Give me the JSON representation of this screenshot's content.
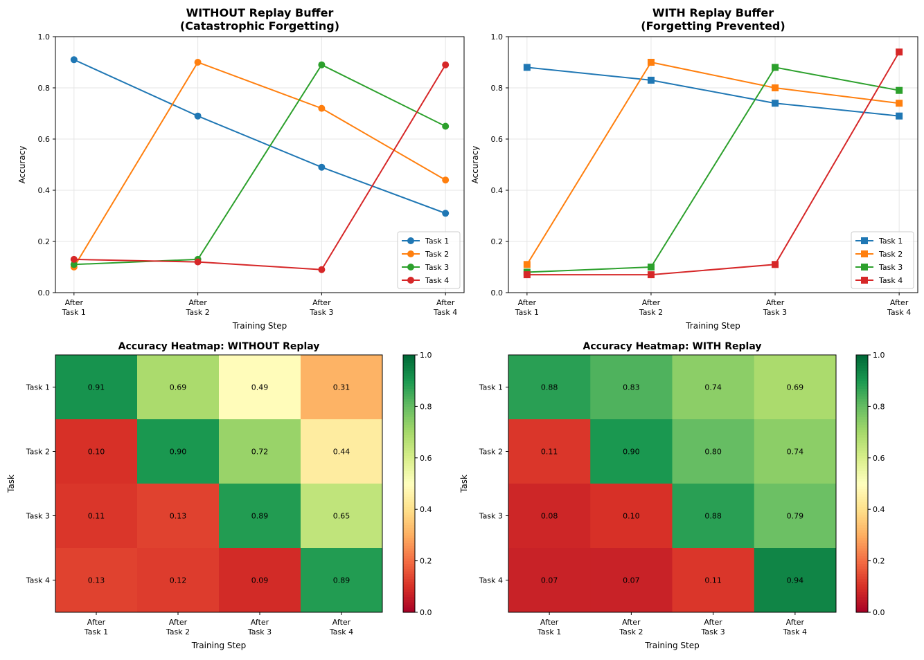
{
  "chart_data": [
    {
      "type": "line",
      "title": "WITHOUT Replay Buffer\n(Catastrophic Forgetting)",
      "xlabel": "Training Step",
      "ylabel": "Accuracy",
      "ylim": [
        0,
        1
      ],
      "yticks": [
        "0.0",
        "0.2",
        "0.4",
        "0.6",
        "0.8",
        "1.0"
      ],
      "categories": [
        "After\nTask 1",
        "After\nTask 2",
        "After\nTask 3",
        "After\nTask 4"
      ],
      "marker": "circle",
      "grid": true,
      "legend": "lower-right",
      "series": [
        {
          "name": "Task 1",
          "values": [
            0.91,
            0.69,
            0.49,
            0.31
          ],
          "color": "#1f77b4"
        },
        {
          "name": "Task 2",
          "values": [
            0.1,
            0.9,
            0.72,
            0.44
          ],
          "color": "#ff7f0e"
        },
        {
          "name": "Task 3",
          "values": [
            0.11,
            0.13,
            0.89,
            0.65
          ],
          "color": "#2ca02c"
        },
        {
          "name": "Task 4",
          "values": [
            0.13,
            0.12,
            0.09,
            0.89
          ],
          "color": "#d62728"
        }
      ]
    },
    {
      "type": "line",
      "title": "WITH Replay Buffer\n(Forgetting Prevented)",
      "xlabel": "Training Step",
      "ylabel": "Accuracy",
      "ylim": [
        0,
        1
      ],
      "yticks": [
        "0.0",
        "0.2",
        "0.4",
        "0.6",
        "0.8",
        "1.0"
      ],
      "categories": [
        "After\nTask 1",
        "After\nTask 2",
        "After\nTask 3",
        "After\nTask 4"
      ],
      "marker": "square",
      "grid": true,
      "legend": "lower-right",
      "series": [
        {
          "name": "Task 1",
          "values": [
            0.88,
            0.83,
            0.74,
            0.69
          ],
          "color": "#1f77b4"
        },
        {
          "name": "Task 2",
          "values": [
            0.11,
            0.9,
            0.8,
            0.74
          ],
          "color": "#ff7f0e"
        },
        {
          "name": "Task 3",
          "values": [
            0.08,
            0.1,
            0.88,
            0.79
          ],
          "color": "#2ca02c"
        },
        {
          "name": "Task 4",
          "values": [
            0.07,
            0.07,
            0.11,
            0.94
          ],
          "color": "#d62728"
        }
      ]
    },
    {
      "type": "heatmap",
      "title": "Accuracy Heatmap: WITHOUT Replay",
      "xlabel": "Training Step",
      "ylabel": "Task",
      "colormap": "RdYlGn",
      "clim": [
        0,
        1
      ],
      "colorbar_ticks": [
        "0.0",
        "0.2",
        "0.4",
        "0.6",
        "0.8",
        "1.0"
      ],
      "x_categories": [
        "After\nTask 1",
        "After\nTask 2",
        "After\nTask 3",
        "After\nTask 4"
      ],
      "y_categories": [
        "Task 1",
        "Task 2",
        "Task 3",
        "Task 4"
      ],
      "values": [
        [
          0.91,
          0.69,
          0.49,
          0.31
        ],
        [
          0.1,
          0.9,
          0.72,
          0.44
        ],
        [
          0.11,
          0.13,
          0.89,
          0.65
        ],
        [
          0.13,
          0.12,
          0.09,
          0.89
        ]
      ],
      "labels": [
        [
          "0.91",
          "0.69",
          "0.49",
          "0.31"
        ],
        [
          "0.10",
          "0.90",
          "0.72",
          "0.44"
        ],
        [
          "0.11",
          "0.13",
          "0.89",
          "0.65"
        ],
        [
          "0.13",
          "0.12",
          "0.09",
          "0.89"
        ]
      ]
    },
    {
      "type": "heatmap",
      "title": "Accuracy Heatmap: WITH Replay",
      "xlabel": "Training Step",
      "ylabel": "Task",
      "colormap": "RdYlGn",
      "clim": [
        0,
        1
      ],
      "colorbar_ticks": [
        "0.0",
        "0.2",
        "0.4",
        "0.6",
        "0.8",
        "1.0"
      ],
      "x_categories": [
        "After\nTask 1",
        "After\nTask 2",
        "After\nTask 3",
        "After\nTask 4"
      ],
      "y_categories": [
        "Task 1",
        "Task 2",
        "Task 3",
        "Task 4"
      ],
      "values": [
        [
          0.88,
          0.83,
          0.74,
          0.69
        ],
        [
          0.11,
          0.9,
          0.8,
          0.74
        ],
        [
          0.08,
          0.1,
          0.88,
          0.79
        ],
        [
          0.07,
          0.07,
          0.11,
          0.94
        ]
      ],
      "labels": [
        [
          "0.88",
          "0.83",
          "0.74",
          "0.69"
        ],
        [
          "0.11",
          "0.90",
          "0.80",
          "0.74"
        ],
        [
          "0.08",
          "0.10",
          "0.88",
          "0.79"
        ],
        [
          "0.07",
          "0.07",
          "0.11",
          "0.94"
        ]
      ]
    }
  ]
}
